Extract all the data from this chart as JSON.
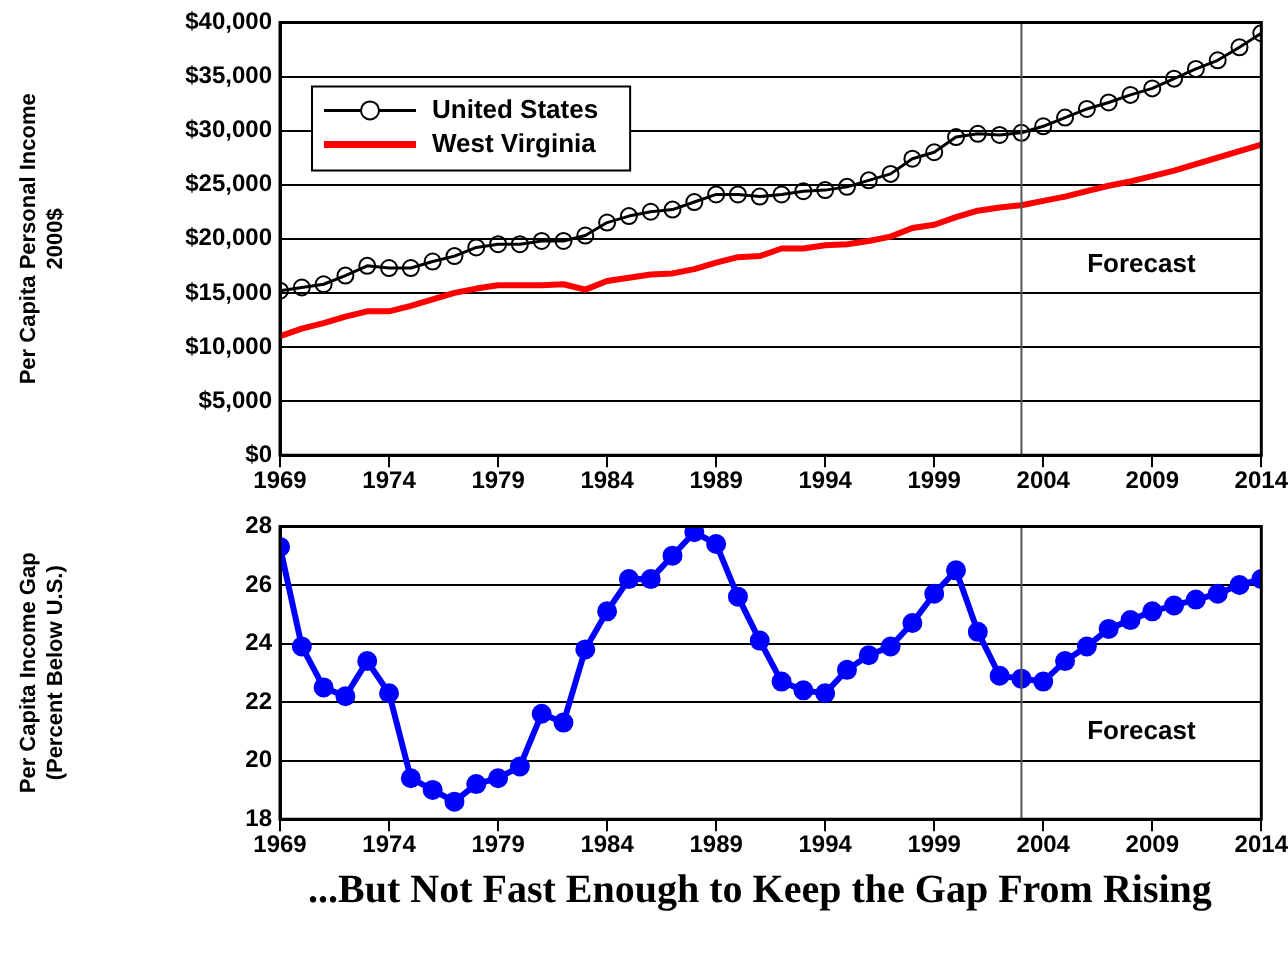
{
  "chart_data": [
    {
      "type": "line",
      "ylabel": "Per Capita Personal Income\n2000$",
      "x": [
        1969,
        1970,
        1971,
        1972,
        1973,
        1974,
        1975,
        1976,
        1977,
        1978,
        1979,
        1980,
        1981,
        1982,
        1983,
        1984,
        1985,
        1986,
        1987,
        1988,
        1989,
        1990,
        1991,
        1992,
        1993,
        1994,
        1995,
        1996,
        1997,
        1998,
        1999,
        2000,
        2001,
        2002,
        2003,
        2004,
        2005,
        2006,
        2007,
        2008,
        2009,
        2010,
        2011,
        2012,
        2013,
        2014
      ],
      "series": [
        {
          "name": "United States",
          "color": "#000000",
          "marker": "circle",
          "values": [
            15200,
            15500,
            15800,
            16600,
            17500,
            17300,
            17300,
            17900,
            18400,
            19200,
            19500,
            19500,
            19800,
            19800,
            20300,
            21500,
            22100,
            22500,
            22700,
            23400,
            24100,
            24100,
            23900,
            24100,
            24400,
            24500,
            24800,
            25400,
            26000,
            27400,
            28000,
            29400,
            29700,
            29600,
            29800,
            30400,
            31200,
            32000,
            32600,
            33300,
            33900,
            34800,
            35700,
            36500,
            37700,
            39000
          ]
        },
        {
          "name": "West Virginia",
          "color": "#ff0000",
          "marker": "none",
          "values": [
            11000,
            11700,
            12200,
            12800,
            13300,
            13300,
            13800,
            14400,
            15000,
            15400,
            15700,
            15700,
            15700,
            15800,
            15300,
            16100,
            16400,
            16700,
            16800,
            17200,
            17800,
            18300,
            18400,
            19100,
            19100,
            19400,
            19500,
            19800,
            20200,
            21000,
            21300,
            22000,
            22600,
            22900,
            23100,
            23500,
            23900,
            24400,
            24900,
            25300,
            25800,
            26300,
            26900,
            27500,
            28100,
            28700
          ]
        }
      ],
      "xlim": [
        1969,
        2014
      ],
      "xticks": [
        1969,
        1974,
        1979,
        1984,
        1989,
        1994,
        1999,
        2004,
        2009,
        2014
      ],
      "ylim": [
        0,
        40000
      ],
      "yticks": [
        {
          "value": 0,
          "label": "$0"
        },
        {
          "value": 5000,
          "label": "$5,000"
        },
        {
          "value": 10000,
          "label": "$10,000"
        },
        {
          "value": 15000,
          "label": "$15,000"
        },
        {
          "value": 20000,
          "label": "$20,000"
        },
        {
          "value": 25000,
          "label": "$25,000"
        },
        {
          "value": 30000,
          "label": "$30,000"
        },
        {
          "value": 35000,
          "label": "$35,000"
        },
        {
          "value": 40000,
          "label": "$40,000"
        }
      ],
      "grid": "y",
      "legend": "top left",
      "ref_lines": [
        {
          "axis": "x",
          "value": 2003,
          "color": "#555555"
        }
      ],
      "annotations": [
        "Forecast"
      ]
    },
    {
      "type": "line",
      "title": "...But Not Fast Enough to Keep the Gap From Rising",
      "ylabel": "Per Capita Income Gap\n(Percent Below U.S.)",
      "x": [
        1969,
        1970,
        1971,
        1972,
        1973,
        1974,
        1975,
        1976,
        1977,
        1978,
        1979,
        1980,
        1981,
        1982,
        1983,
        1984,
        1985,
        1986,
        1987,
        1988,
        1989,
        1990,
        1991,
        1992,
        1993,
        1994,
        1995,
        1996,
        1997,
        1998,
        1999,
        2000,
        2001,
        2002,
        2003,
        2004,
        2005,
        2006,
        2007,
        2008,
        2009,
        2010,
        2011,
        2012,
        2013,
        2014
      ],
      "series": [
        {
          "color": "#0000ff",
          "marker": "circle",
          "values": [
            27.3,
            23.9,
            22.5,
            22.2,
            23.4,
            22.3,
            19.4,
            19.0,
            18.6,
            19.2,
            19.4,
            19.8,
            21.6,
            21.3,
            23.8,
            25.1,
            26.2,
            26.2,
            27.0,
            27.8,
            27.4,
            25.6,
            24.1,
            22.7,
            22.4,
            22.3,
            23.1,
            23.6,
            23.9,
            24.7,
            25.7,
            26.5,
            24.4,
            22.9,
            22.8,
            22.7,
            23.4,
            23.9,
            24.5,
            24.8,
            25.1,
            25.3,
            25.5,
            25.7,
            26.0,
            26.2
          ]
        }
      ],
      "xlim": [
        1969,
        2014
      ],
      "xticks": [
        1969,
        1974,
        1979,
        1984,
        1989,
        1994,
        1999,
        2004,
        2009,
        2014
      ],
      "ylim": [
        18,
        28
      ],
      "yticks": [
        18,
        20,
        22,
        24,
        26,
        28
      ],
      "grid": "y",
      "ref_lines": [
        {
          "axis": "x",
          "value": 2003,
          "color": "#555555"
        }
      ],
      "annotations": [
        "Forecast"
      ]
    }
  ]
}
